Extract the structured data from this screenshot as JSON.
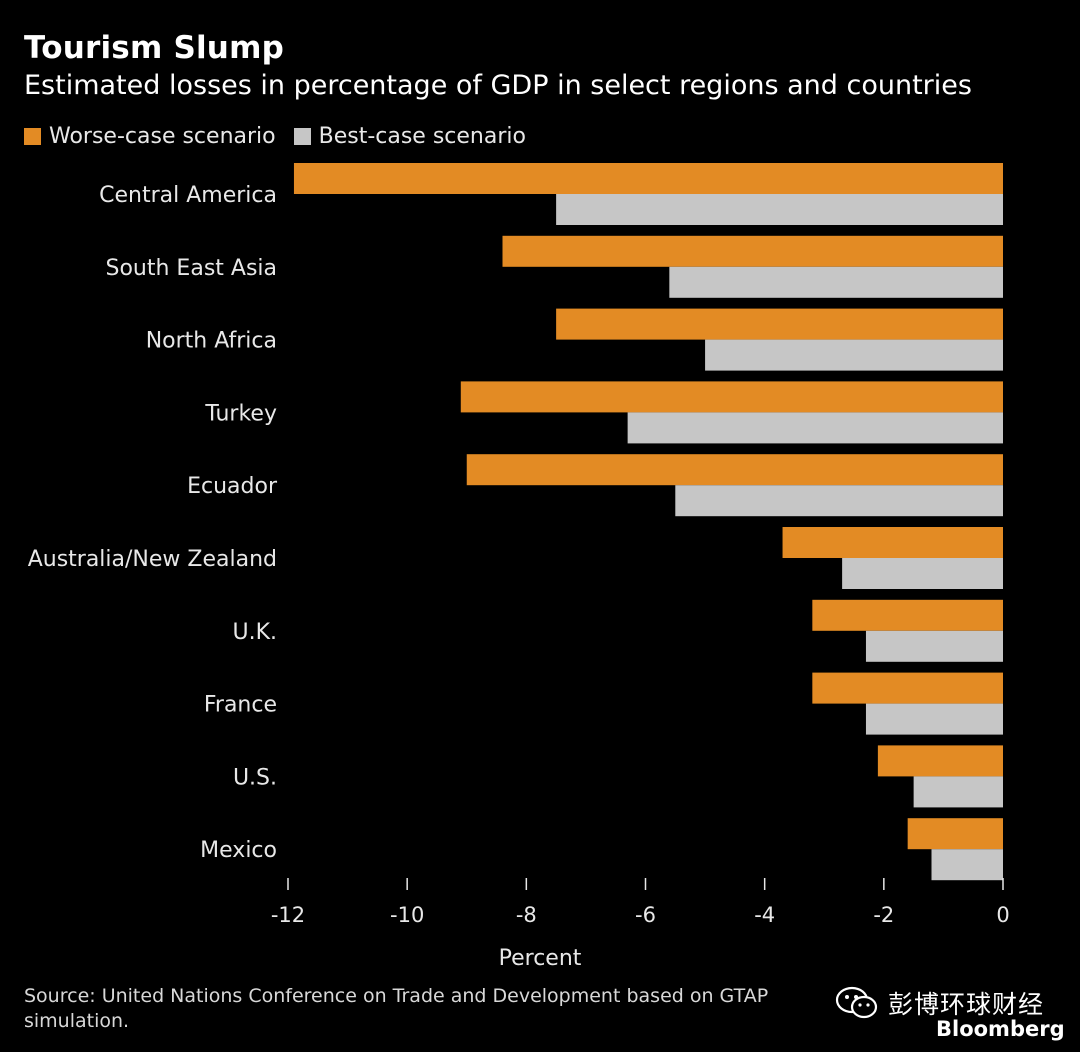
{
  "header": {
    "title": "Tourism Slump",
    "subtitle": "Estimated losses in percentage of GDP in select regions and countries"
  },
  "footer": {
    "source": "Source: United Nations Conference on Trade and Development based on GTAP simulation.",
    "watermark_text": "彭博环球财经",
    "brand": "Bloomberg"
  },
  "colors": {
    "background": "#000000",
    "worse": "#E38B24",
    "best": "#C6C6C6",
    "text": "#FFFFFF"
  },
  "chart_data": {
    "type": "bar",
    "orientation": "horizontal",
    "title": "Tourism Slump",
    "subtitle": "Estimated losses in percentage of GDP in select regions and countries",
    "xlabel": "Percent",
    "ylabel": "",
    "xlim": [
      -12,
      0
    ],
    "xticks": [
      -12,
      -10,
      -8,
      -6,
      -4,
      -2,
      0
    ],
    "grid": false,
    "legend_position": "top-left",
    "categories": [
      "Central America",
      "South East Asia",
      "North Africa",
      "Turkey",
      "Ecuador",
      "Australia/New Zealand",
      "U.K.",
      "France",
      "U.S.",
      "Mexico"
    ],
    "series": [
      {
        "name": "Worse-case scenario",
        "color": "#E38B24",
        "values": [
          -11.9,
          -8.4,
          -7.5,
          -9.1,
          -9.0,
          -3.7,
          -3.2,
          -3.2,
          -2.1,
          -1.6
        ]
      },
      {
        "name": "Best-case scenario",
        "color": "#C6C6C6",
        "values": [
          -7.5,
          -5.6,
          -5.0,
          -6.3,
          -5.5,
          -2.7,
          -2.3,
          -2.3,
          -1.5,
          -1.2
        ]
      }
    ]
  }
}
